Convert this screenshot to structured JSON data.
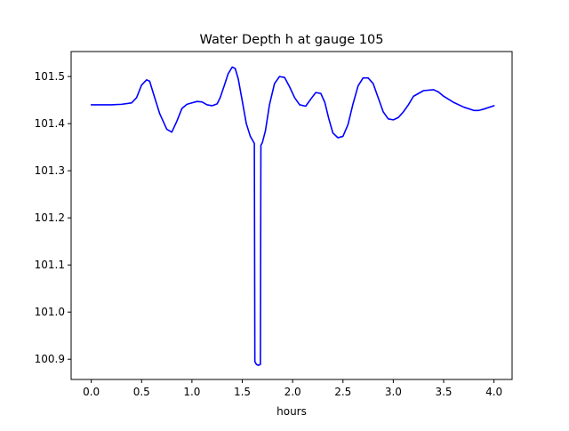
{
  "chart_data": {
    "type": "line",
    "title": "Water Depth h at gauge 105",
    "xlabel": "hours",
    "ylabel": "",
    "xlim": [
      -0.2,
      4.18
    ],
    "ylim": [
      100.857,
      101.553
    ],
    "x_ticks": [
      0.0,
      0.5,
      1.0,
      1.5,
      2.0,
      2.5,
      3.0,
      3.5,
      4.0
    ],
    "x_tick_labels": [
      "0.0",
      "0.5",
      "1.0",
      "1.5",
      "2.0",
      "2.5",
      "3.0",
      "3.5",
      "4.0"
    ],
    "y_ticks": [
      100.9,
      101.0,
      101.1,
      101.2,
      101.3,
      101.4,
      101.5
    ],
    "y_tick_labels": [
      "100.9",
      "101.0",
      "101.1",
      "101.2",
      "101.3",
      "101.4",
      "101.5"
    ],
    "grid": false,
    "colors": {
      "line": "#0000ff",
      "axes": "#000000",
      "text": "#000000",
      "background": "#ffffff"
    },
    "series": [
      {
        "x": [
          0.0,
          0.1,
          0.2,
          0.3,
          0.4,
          0.45,
          0.5,
          0.55,
          0.58,
          0.62,
          0.68,
          0.75,
          0.8,
          0.85,
          0.9,
          0.95,
          1.0,
          1.05,
          1.1,
          1.15,
          1.2,
          1.25,
          1.28,
          1.32,
          1.36,
          1.4,
          1.43,
          1.46,
          1.5,
          1.54,
          1.58,
          1.62,
          1.625,
          1.64,
          1.66,
          1.68,
          1.685,
          1.7,
          1.73,
          1.77,
          1.82,
          1.87,
          1.92,
          1.97,
          2.02,
          2.07,
          2.13,
          2.18,
          2.23,
          2.28,
          2.32,
          2.36,
          2.4,
          2.45,
          2.5,
          2.55,
          2.6,
          2.65,
          2.7,
          2.75,
          2.8,
          2.85,
          2.9,
          2.95,
          3.0,
          3.05,
          3.1,
          3.15,
          3.2,
          3.3,
          3.4,
          3.45,
          3.5,
          3.6,
          3.7,
          3.8,
          3.85,
          3.9,
          4.0
        ],
        "values": [
          101.44,
          101.44,
          101.44,
          101.441,
          101.444,
          101.455,
          101.482,
          101.493,
          101.49,
          101.462,
          101.421,
          101.388,
          101.382,
          101.405,
          101.432,
          101.441,
          101.444,
          101.447,
          101.446,
          101.44,
          101.438,
          101.442,
          101.455,
          101.48,
          101.506,
          101.52,
          101.517,
          101.495,
          101.448,
          101.4,
          101.373,
          101.358,
          100.895,
          100.889,
          100.887,
          100.889,
          101.354,
          101.36,
          101.385,
          101.44,
          101.485,
          101.5,
          101.498,
          101.478,
          101.455,
          101.44,
          101.437,
          101.452,
          101.466,
          101.464,
          101.445,
          101.41,
          101.38,
          101.37,
          101.373,
          101.398,
          101.442,
          101.48,
          101.497,
          101.497,
          101.485,
          101.455,
          101.425,
          101.41,
          101.408,
          101.413,
          101.425,
          101.44,
          101.458,
          101.47,
          101.472,
          101.467,
          101.458,
          101.445,
          101.435,
          101.428,
          101.428,
          101.431,
          101.438
        ]
      }
    ]
  }
}
